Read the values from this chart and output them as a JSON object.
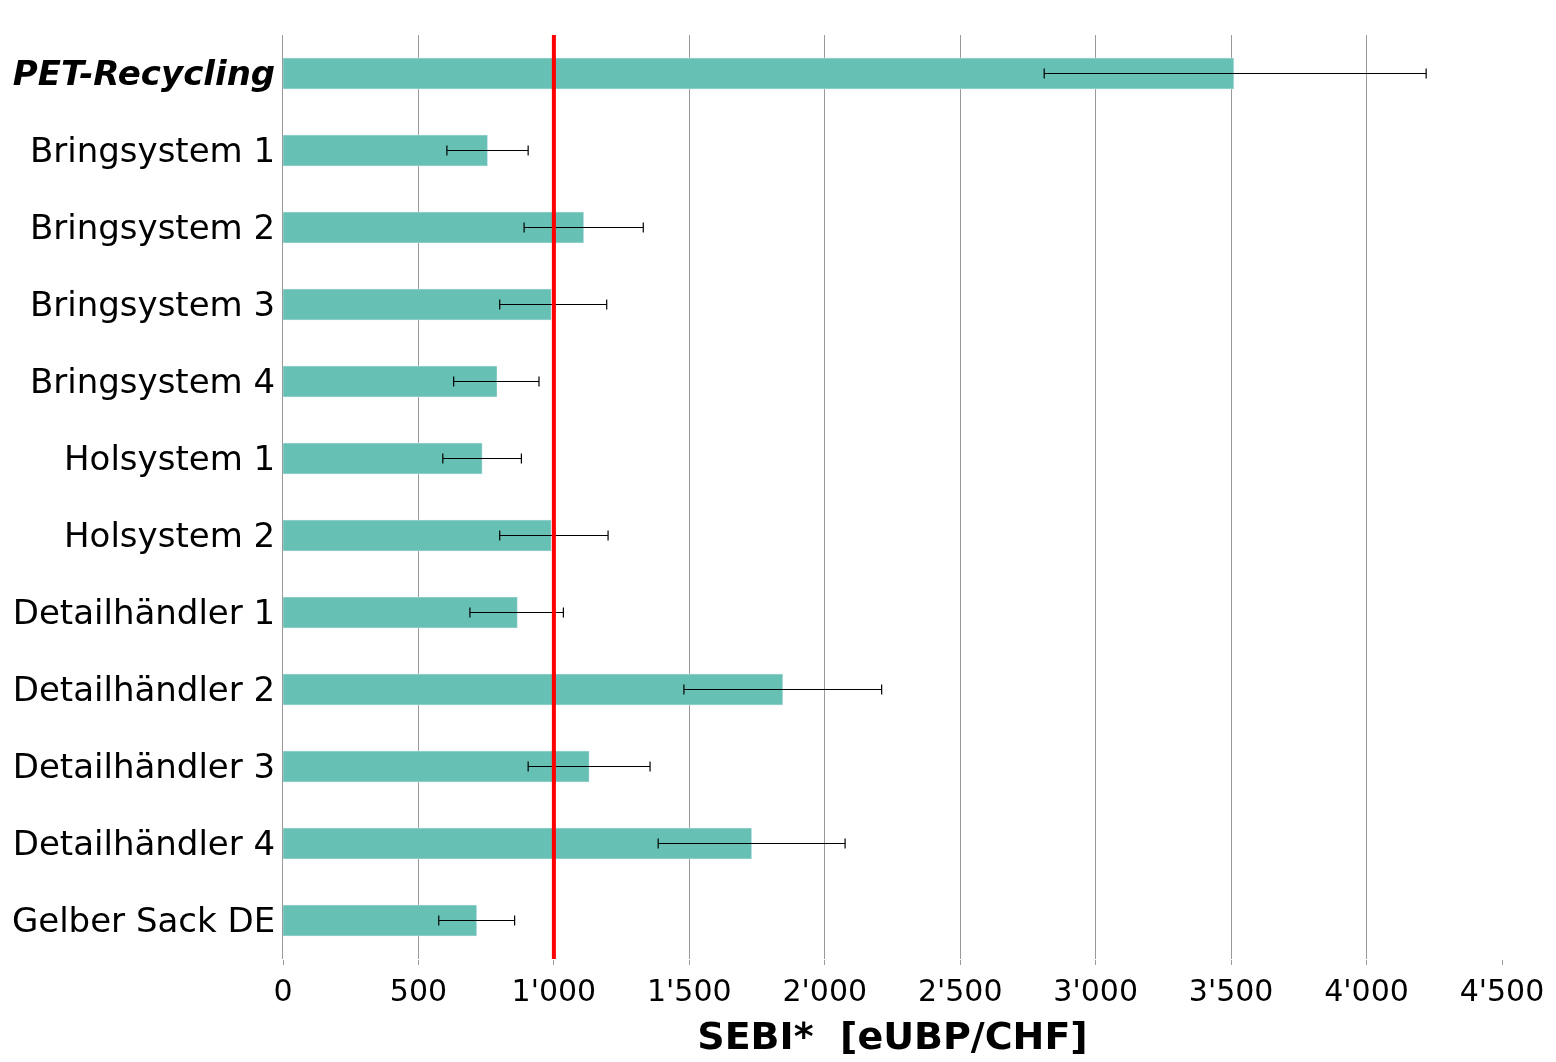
{
  "chart_data": {
    "type": "bar",
    "orientation": "horizontal",
    "xlabel": "SEBI*  [eUBP/CHF]",
    "categories": [
      "PET-Recycling",
      "Bringsystem 1",
      "Bringsystem 2",
      "Bringsystem 3",
      "Bringsystem 4",
      "Holsystem 1",
      "Holsystem 2",
      "Detailhändler 1",
      "Detailhändler 2",
      "Detailhändler 3",
      "Detailhändler 4",
      "Gelber Sack DE"
    ],
    "values": [
      3510,
      755,
      1110,
      990,
      790,
      735,
      990,
      865,
      1845,
      1130,
      1730,
      715
    ],
    "errors": [
      [
        2810,
        4220
      ],
      [
        605,
        905
      ],
      [
        890,
        1330
      ],
      [
        800,
        1195
      ],
      [
        630,
        945
      ],
      [
        590,
        880
      ],
      [
        800,
        1200
      ],
      [
        690,
        1035
      ],
      [
        1480,
        2210
      ],
      [
        905,
        1355
      ],
      [
        1385,
        2075
      ],
      [
        575,
        855
      ]
    ],
    "color": "#66c0b4",
    "xlim": [
      0,
      4500
    ],
    "xticks": [
      0,
      500,
      {
        "value": 1000,
        "label": "1'000"
      },
      {
        "value": 1500,
        "label": "1'500"
      },
      {
        "value": 2000,
        "label": "2'000"
      },
      {
        "value": 2500,
        "label": "2'500"
      },
      {
        "value": 3000,
        "label": "3'000"
      },
      {
        "value": 3500,
        "label": "3'500"
      },
      {
        "value": 4000,
        "label": "4'000"
      },
      {
        "value": 4500,
        "label": "4'500"
      }
    ],
    "ref_lines": [
      {
        "axis": "x",
        "value": 1000,
        "color": "#ff0000"
      }
    ],
    "grid": "x",
    "legend": false
  }
}
